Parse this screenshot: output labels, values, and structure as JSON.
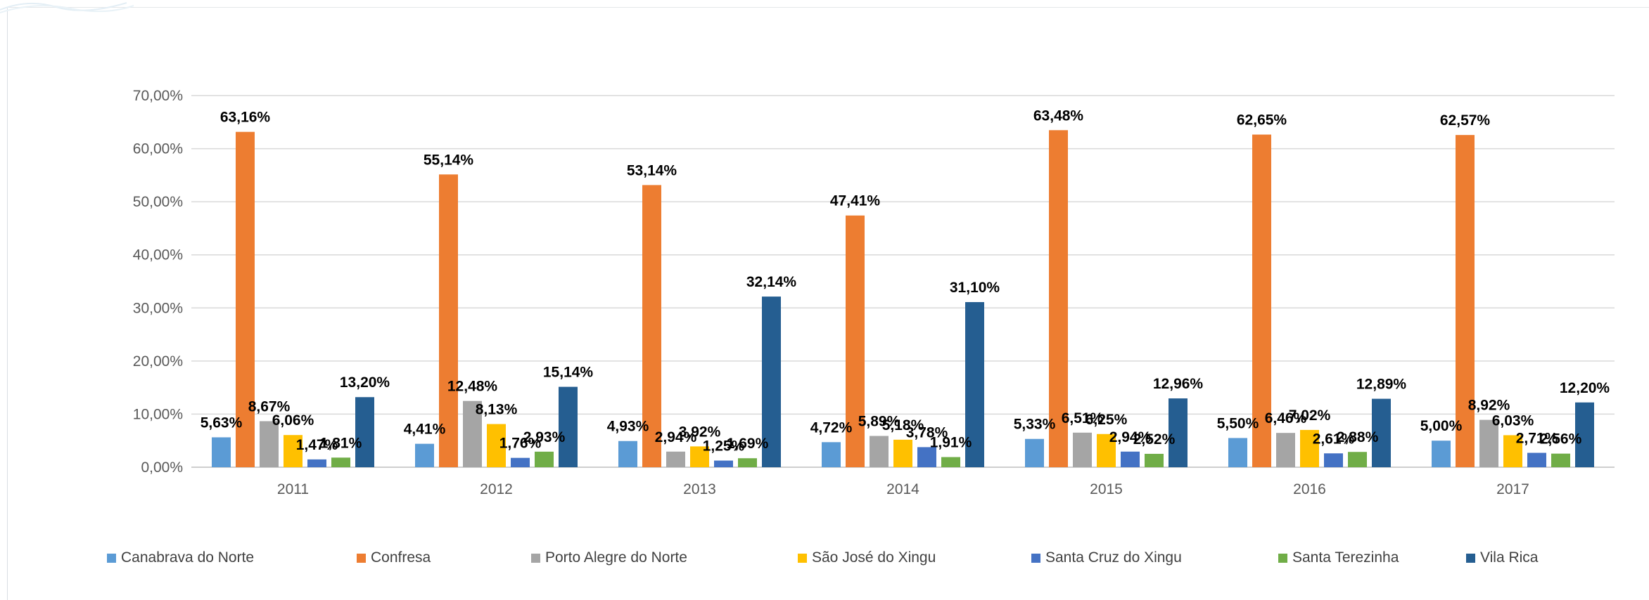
{
  "chart_data": {
    "type": "bar",
    "title": "",
    "xlabel": "",
    "ylabel": "",
    "ylim": [
      0,
      70
    ],
    "y_tick_labels": [
      "0,00%",
      "10,00%",
      "20,00%",
      "30,00%",
      "40,00%",
      "50,00%",
      "60,00%",
      "70,00%"
    ],
    "y_tick_values": [
      0,
      10,
      20,
      30,
      40,
      50,
      60,
      70
    ],
    "grid": true,
    "legend_position": "bottom",
    "categories": [
      "2011",
      "2012",
      "2013",
      "2014",
      "2015",
      "2016",
      "2017"
    ],
    "series": [
      {
        "name": "Canabrava do Norte",
        "color": "#5b9bd5",
        "values": [
          5.63,
          4.41,
          4.93,
          4.72,
          5.33,
          5.5,
          5.0
        ],
        "labels": [
          "5,63%",
          "4,41%",
          "4,93%",
          "4,72%",
          "5,33%",
          "5,50%",
          "5,00%"
        ]
      },
      {
        "name": "Confresa",
        "color": "#ed7d31",
        "values": [
          63.16,
          55.14,
          53.14,
          47.41,
          63.48,
          62.65,
          62.57
        ],
        "labels": [
          "63,16%",
          "55,14%",
          "53,14%",
          "47,41%",
          "63,48%",
          "62,65%",
          "62,57%"
        ]
      },
      {
        "name": "Porto Alegre do Norte",
        "color": "#a5a5a5",
        "values": [
          8.67,
          12.48,
          2.94,
          5.89,
          6.51,
          6.46,
          8.92
        ],
        "labels": [
          "8,67%",
          "12,48%",
          "2,94%",
          "5,89%",
          "6,51%",
          "6,46%",
          "8,92%"
        ]
      },
      {
        "name": "São José do Xingu",
        "color": "#ffc000",
        "values": [
          6.06,
          8.13,
          3.92,
          5.18,
          6.25,
          7.02,
          6.03
        ],
        "labels": [
          "6,06%",
          "8,13%",
          "3,92%",
          "5,18%",
          "6,25%",
          "7,02%",
          "6,03%"
        ]
      },
      {
        "name": "Santa Cruz do Xingu",
        "color": "#4472c4",
        "values": [
          1.47,
          1.76,
          1.25,
          3.78,
          2.94,
          2.61,
          2.71
        ],
        "labels": [
          "1,47%",
          "1,76%",
          "1,25%",
          "3,78%",
          "2,94%",
          "2,61%",
          "2,71%"
        ]
      },
      {
        "name": "Santa Terezinha",
        "color": "#70ad47",
        "values": [
          1.81,
          2.93,
          1.69,
          1.91,
          2.52,
          2.88,
          2.56
        ],
        "labels": [
          "1,81%",
          "2,93%",
          "1,69%",
          "1,91%",
          "2,52%",
          "2,88%",
          "2,56%"
        ]
      },
      {
        "name": "Vila Rica",
        "color": "#255e91",
        "values": [
          13.2,
          15.14,
          32.14,
          31.1,
          12.96,
          12.89,
          12.2
        ],
        "labels": [
          "13,20%",
          "15,14%",
          "32,14%",
          "31,10%",
          "12,96%",
          "12,89%",
          "12,20%"
        ]
      }
    ]
  }
}
